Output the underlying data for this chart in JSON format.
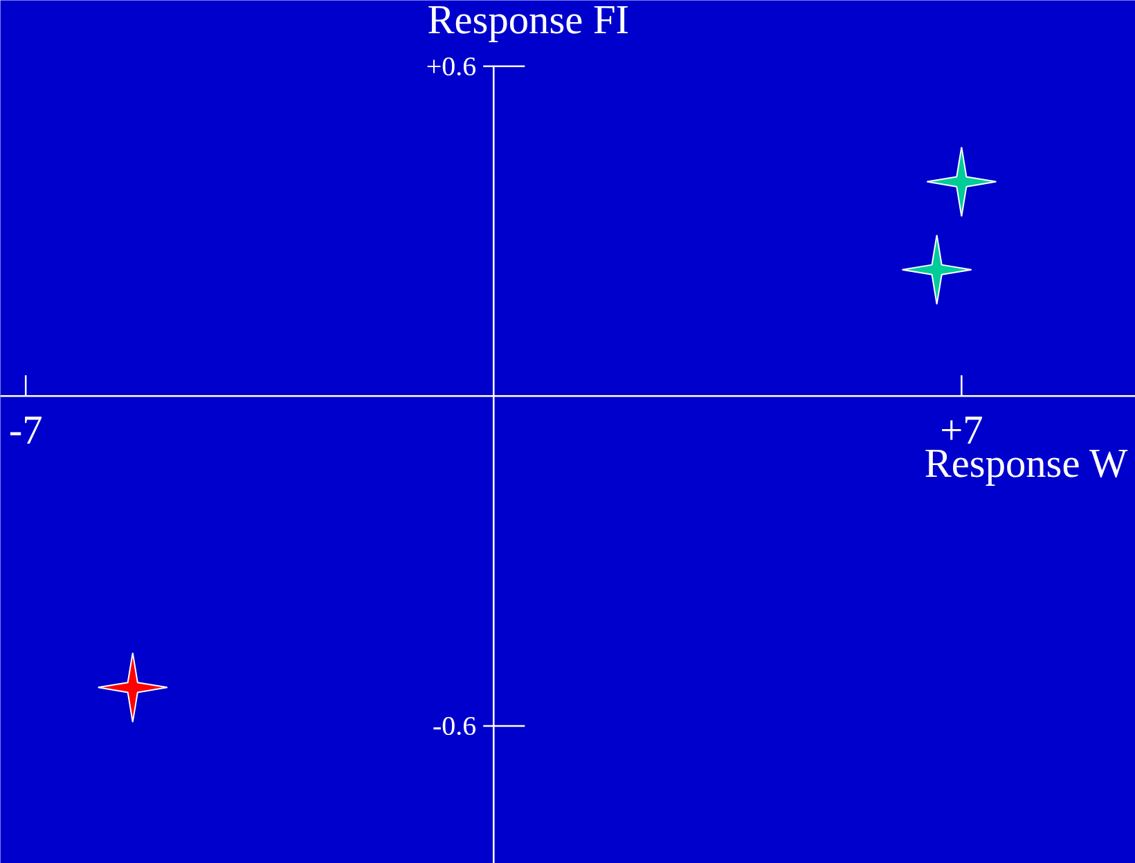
{
  "chart_data": {
    "type": "scatter",
    "xlabel": "Response W",
    "ylabel": "Response FI",
    "x": [
      7,
      6.63,
      -5.4
    ],
    "values": [
      0.39,
      0.23,
      -0.53
    ],
    "colors": [
      "#00cc99",
      "#00cc99",
      "#ff0000"
    ],
    "marker": "star",
    "xlim": [
      -7.38,
      9.6
    ],
    "ylim": [
      -0.85,
      0.72
    ],
    "xticks": [
      -7,
      {
        "value": 7,
        "label": "+7"
      }
    ],
    "yticks": [
      {
        "value": 0.6,
        "label": "+0.6"
      },
      -0.6
    ],
    "grid": false
  }
}
